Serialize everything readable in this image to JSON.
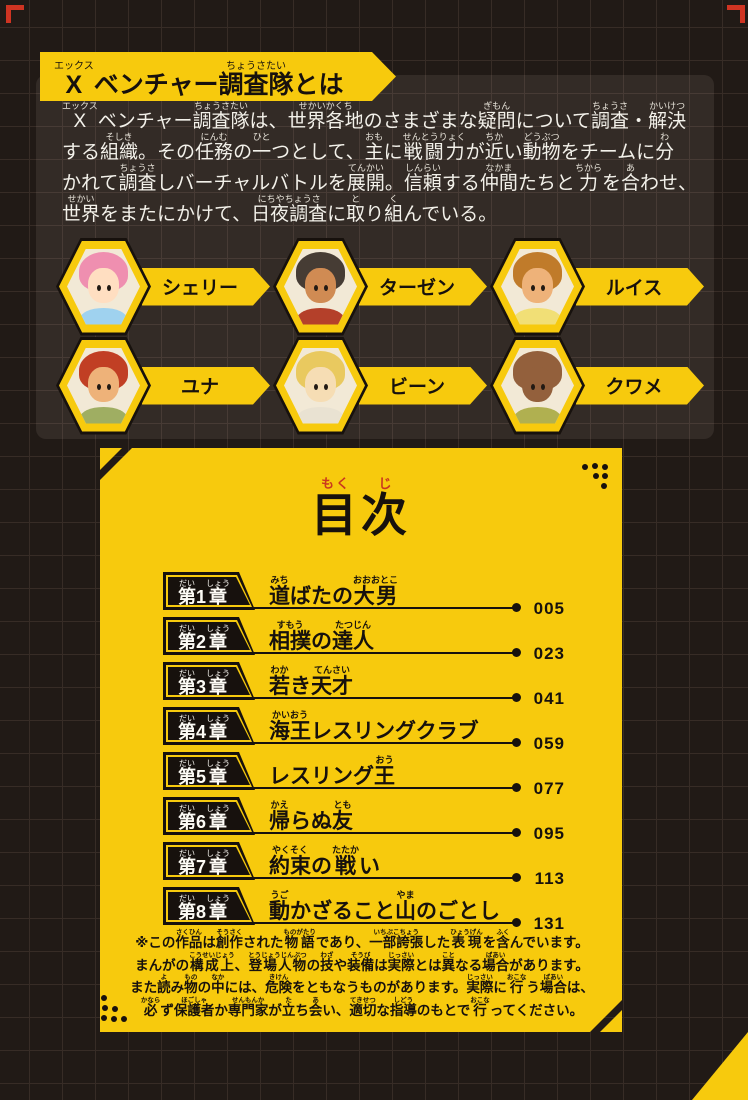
{
  "colors": {
    "background": "#211a16",
    "yellow": "#f7ca0d",
    "badge_black": "#17110d",
    "text_white": "#f3f1ea",
    "ruby_red": "#c9381e",
    "corner_mark_red": "#cf3422"
  },
  "intro": {
    "title": [
      {
        "b": "X",
        "r": "エックス"
      },
      {
        "b": "ベンチャー"
      },
      {
        "b": "調査隊",
        "r": "ちょうさたい"
      },
      {
        "b": "とは"
      }
    ],
    "lines": [
      [
        {
          "b": "X",
          "r": "エックス"
        },
        {
          "b": "ベンチャー"
        },
        {
          "b": "調査隊",
          "r": "ちょうさたい"
        },
        {
          "b": "は、"
        },
        {
          "b": "世界各地",
          "r": "せかいかくち"
        },
        {
          "b": "のさまざまな"
        },
        {
          "b": "疑問",
          "r": "ぎもん"
        },
        {
          "b": "について"
        },
        {
          "b": "調査",
          "r": "ちょうさ"
        },
        {
          "b": "・"
        },
        {
          "b": "解決",
          "r": "かいけつ"
        }
      ],
      [
        {
          "b": "する"
        },
        {
          "b": "組織",
          "r": "そしき"
        },
        {
          "b": "。その"
        },
        {
          "b": "任務",
          "r": "にんむ"
        },
        {
          "b": "の"
        },
        {
          "b": "一",
          "r": "ひと"
        },
        {
          "b": "つとして、"
        },
        {
          "b": "主",
          "r": "おも"
        },
        {
          "b": "に"
        },
        {
          "b": "戦闘力",
          "r": "せんとうりょく"
        },
        {
          "b": "が"
        },
        {
          "b": "近",
          "r": "ちか"
        },
        {
          "b": "い"
        },
        {
          "b": "動物",
          "r": "どうぶつ"
        },
        {
          "b": "をチームに"
        },
        {
          "b": "分",
          "r": "わ"
        }
      ],
      [
        {
          "b": "かれて"
        },
        {
          "b": "調査",
          "r": "ちょうさ"
        },
        {
          "b": "しバーチャルバトルを"
        },
        {
          "b": "展開",
          "r": "てんかい"
        },
        {
          "b": "。"
        },
        {
          "b": "信頼",
          "r": "しんらい"
        },
        {
          "b": "する"
        },
        {
          "b": "仲間",
          "r": "なかま"
        },
        {
          "b": "たちと"
        },
        {
          "b": "力",
          "r": "ちから"
        },
        {
          "b": "を"
        },
        {
          "b": "合",
          "r": "あ"
        },
        {
          "b": "わせ、"
        }
      ],
      [
        {
          "b": "世界",
          "r": "せかい"
        },
        {
          "b": "をまたにかけて、"
        },
        {
          "b": "日夜調査",
          "r": "にちやちょうさ"
        },
        {
          "b": "に"
        },
        {
          "b": "取",
          "r": "と"
        },
        {
          "b": "り"
        },
        {
          "b": "組",
          "r": "く"
        },
        {
          "b": "んでいる。"
        }
      ]
    ]
  },
  "characters": [
    {
      "name": "シェリー",
      "hair": "#ef8fb0",
      "skin": "#ffdec1",
      "shirt": "#9fd2ef"
    },
    {
      "name": "ターゼン",
      "hair": "#463c34",
      "skin": "#d08b53",
      "shirt": "#b4402a"
    },
    {
      "name": "ルイス",
      "hair": "#c07b2a",
      "skin": "#eeb279",
      "shirt": "#f1df76"
    },
    {
      "name": "ユナ",
      "hair": "#c13f24",
      "skin": "#eeb279",
      "shirt": "#9fae62"
    },
    {
      "name": "ビーン",
      "hair": "#e9c95f",
      "skin": "#f6ddb4",
      "shirt": "#e9e2d2"
    },
    {
      "name": "クワメ",
      "hair": "#93603c",
      "skin": "#93603c",
      "shirt": "#b0b050"
    }
  ],
  "toc": {
    "title": [
      {
        "b": "目",
        "r": "もく"
      },
      {
        "b": "次",
        "r": "じ"
      }
    ],
    "chapters": [
      {
        "label": [
          {
            "b": "第",
            "r": "だい"
          },
          {
            "b": "1"
          },
          {
            "b": "章",
            "r": "しょう"
          }
        ],
        "title": [
          {
            "b": "道",
            "r": "みち"
          },
          {
            "b": "ばたの"
          },
          {
            "b": "大男",
            "r": "おおおとこ"
          }
        ],
        "page": "005"
      },
      {
        "label": [
          {
            "b": "第",
            "r": "だい"
          },
          {
            "b": "2"
          },
          {
            "b": "章",
            "r": "しょう"
          }
        ],
        "title": [
          {
            "b": "相撲",
            "r": "すもう"
          },
          {
            "b": "の"
          },
          {
            "b": "達人",
            "r": "たつじん"
          }
        ],
        "page": "023"
      },
      {
        "label": [
          {
            "b": "第",
            "r": "だい"
          },
          {
            "b": "3"
          },
          {
            "b": "章",
            "r": "しょう"
          }
        ],
        "title": [
          {
            "b": "若",
            "r": "わか"
          },
          {
            "b": "き"
          },
          {
            "b": "天才",
            "r": "てんさい"
          }
        ],
        "page": "041"
      },
      {
        "label": [
          {
            "b": "第",
            "r": "だい"
          },
          {
            "b": "4"
          },
          {
            "b": "章",
            "r": "しょう"
          }
        ],
        "title": [
          {
            "b": "海王",
            "r": "かいおう"
          },
          {
            "b": "レスリングクラブ"
          }
        ],
        "page": "059"
      },
      {
        "label": [
          {
            "b": "第",
            "r": "だい"
          },
          {
            "b": "5"
          },
          {
            "b": "章",
            "r": "しょう"
          }
        ],
        "title": [
          {
            "b": "レスリング"
          },
          {
            "b": "王",
            "r": "おう"
          }
        ],
        "page": "077"
      },
      {
        "label": [
          {
            "b": "第",
            "r": "だい"
          },
          {
            "b": "6"
          },
          {
            "b": "章",
            "r": "しょう"
          }
        ],
        "title": [
          {
            "b": "帰",
            "r": "かえ"
          },
          {
            "b": "らぬ"
          },
          {
            "b": "友",
            "r": "とも"
          }
        ],
        "page": "095"
      },
      {
        "label": [
          {
            "b": "第",
            "r": "だい"
          },
          {
            "b": "7"
          },
          {
            "b": "章",
            "r": "しょう"
          }
        ],
        "title": [
          {
            "b": "約束",
            "r": "やくそく"
          },
          {
            "b": "の"
          },
          {
            "b": "戦",
            "r": "たたか"
          },
          {
            "b": "い"
          }
        ],
        "page": "113"
      },
      {
        "label": [
          {
            "b": "第",
            "r": "だい"
          },
          {
            "b": "8"
          },
          {
            "b": "章",
            "r": "しょう"
          }
        ],
        "title": [
          {
            "b": "動",
            "r": "うご"
          },
          {
            "b": "かざること"
          },
          {
            "b": "山",
            "r": "やま"
          },
          {
            "b": "のごとし"
          }
        ],
        "page": "131"
      }
    ],
    "notes": [
      [
        {
          "b": "※この"
        },
        {
          "b": "作品",
          "r": "さくひん"
        },
        {
          "b": "は"
        },
        {
          "b": "創作",
          "r": "そうさく"
        },
        {
          "b": "された"
        },
        {
          "b": "物語",
          "r": "ものがたり"
        },
        {
          "b": "であり、"
        },
        {
          "b": "一部誇張",
          "r": "いちぶこちょう"
        },
        {
          "b": "した"
        },
        {
          "b": "表現",
          "r": "ひょうげん"
        },
        {
          "b": "を"
        },
        {
          "b": "含",
          "r": "ふく"
        },
        {
          "b": "んでいます。"
        }
      ],
      [
        {
          "b": "まんがの"
        },
        {
          "b": "構成上",
          "r": "こうせいじょう"
        },
        {
          "b": "、"
        },
        {
          "b": "登場人物",
          "r": "とうじょうじんぶつ"
        },
        {
          "b": "の"
        },
        {
          "b": "技",
          "r": "わざ"
        },
        {
          "b": "や"
        },
        {
          "b": "装備",
          "r": "そうび"
        },
        {
          "b": "は"
        },
        {
          "b": "実際",
          "r": "じっさい"
        },
        {
          "b": "とは"
        },
        {
          "b": "異",
          "r": "こと"
        },
        {
          "b": "なる"
        },
        {
          "b": "場合",
          "r": "ばあい"
        },
        {
          "b": "があります。"
        }
      ],
      [
        {
          "b": "また"
        },
        {
          "b": "読",
          "r": "よ"
        },
        {
          "b": "み"
        },
        {
          "b": "物",
          "r": "もの"
        },
        {
          "b": "の"
        },
        {
          "b": "中",
          "r": "なか"
        },
        {
          "b": "には、"
        },
        {
          "b": "危険",
          "r": "きけん"
        },
        {
          "b": "をともなうものがあります。"
        },
        {
          "b": "実際",
          "r": "じっさい"
        },
        {
          "b": "に"
        },
        {
          "b": "行",
          "r": "おこな"
        },
        {
          "b": "う"
        },
        {
          "b": "場合",
          "r": "ばあい"
        },
        {
          "b": "は、"
        }
      ],
      [
        {
          "b": "必",
          "r": "かなら"
        },
        {
          "b": "ず"
        },
        {
          "b": "保護者",
          "r": "ほごしゃ"
        },
        {
          "b": "か"
        },
        {
          "b": "専門家",
          "r": "せんもんか"
        },
        {
          "b": "が"
        },
        {
          "b": "立",
          "r": "た"
        },
        {
          "b": "ち"
        },
        {
          "b": "会",
          "r": "あ"
        },
        {
          "b": "い、"
        },
        {
          "b": "適切",
          "r": "てきせつ"
        },
        {
          "b": "な"
        },
        {
          "b": "指導",
          "r": "しどう"
        },
        {
          "b": "のもとで"
        },
        {
          "b": "行",
          "r": "おこな"
        },
        {
          "b": "ってください。"
        }
      ]
    ]
  }
}
